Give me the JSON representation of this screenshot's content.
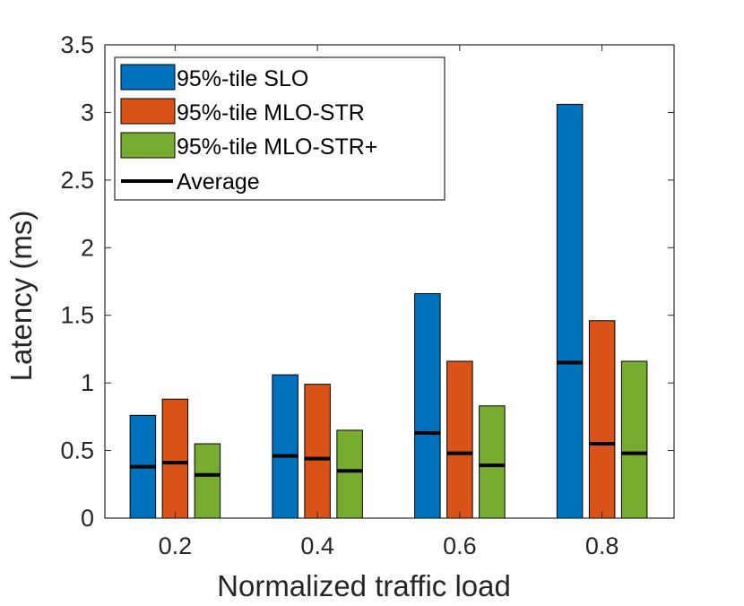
{
  "chart_data": {
    "type": "bar",
    "title": "",
    "xlabel": "Normalized traffic load",
    "ylabel": "Latency (ms)",
    "categories": [
      "0.2",
      "0.4",
      "0.6",
      "0.8"
    ],
    "ylim": [
      0,
      3.5
    ],
    "yticks": [
      "0",
      "0.5",
      "1",
      "1.5",
      "2",
      "2.5",
      "3",
      "3.5"
    ],
    "grid": false,
    "legend_position": "top-left",
    "series": [
      {
        "name": "95%-tile SLO",
        "color": "#0072BD",
        "values": [
          0.76,
          1.06,
          1.66,
          3.06
        ],
        "average": [
          0.38,
          0.46,
          0.63,
          1.15
        ]
      },
      {
        "name": "95%-tile MLO-STR",
        "color": "#D95319",
        "values": [
          0.88,
          0.99,
          1.16,
          1.46
        ],
        "average": [
          0.41,
          0.44,
          0.48,
          0.55
        ]
      },
      {
        "name": "95%-tile MLO-STR+",
        "color": "#77AC30",
        "values": [
          0.55,
          0.65,
          0.83,
          1.16
        ],
        "average": [
          0.32,
          0.35,
          0.39,
          0.48
        ]
      }
    ],
    "average_legend_label": "Average",
    "average_marker_color": "#000000"
  }
}
